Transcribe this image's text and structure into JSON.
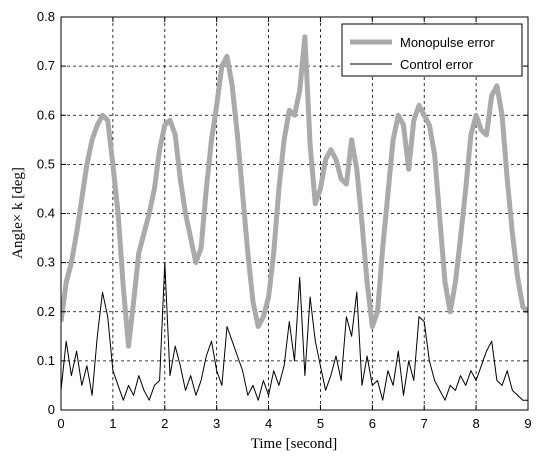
{
  "chart_data": {
    "type": "line",
    "xlabel": "Time [second]",
    "ylabel": "Angle× k [deg]",
    "xlim": [
      0,
      9
    ],
    "ylim": [
      0,
      0.8
    ],
    "x_ticks": [
      "0",
      "1",
      "2",
      "3",
      "4",
      "5",
      "6",
      "7",
      "8",
      "9"
    ],
    "y_ticks": [
      "0",
      "0.1",
      "0.2",
      "0.3",
      "0.4",
      "0.5",
      "0.6",
      "0.7",
      "0.8"
    ],
    "grid": true,
    "legend_position": "top-right",
    "series": [
      {
        "name": "Monopulse error",
        "color": "#aaaaaa",
        "x": [
          0,
          0.1,
          0.2,
          0.3,
          0.4,
          0.5,
          0.6,
          0.7,
          0.8,
          0.9,
          1.0,
          1.1,
          1.2,
          1.3,
          1.4,
          1.5,
          1.6,
          1.7,
          1.8,
          1.9,
          2.0,
          2.1,
          2.2,
          2.3,
          2.4,
          2.5,
          2.6,
          2.7,
          2.8,
          2.9,
          3.0,
          3.1,
          3.2,
          3.3,
          3.4,
          3.5,
          3.6,
          3.7,
          3.8,
          3.9,
          4.0,
          4.1,
          4.2,
          4.3,
          4.4,
          4.5,
          4.6,
          4.7,
          4.8,
          4.9,
          5.0,
          5.1,
          5.2,
          5.3,
          5.4,
          5.5,
          5.6,
          5.7,
          5.8,
          5.9,
          6.0,
          6.1,
          6.2,
          6.3,
          6.4,
          6.5,
          6.6,
          6.7,
          6.8,
          6.9,
          7.0,
          7.1,
          7.2,
          7.3,
          7.4,
          7.5,
          7.6,
          7.7,
          7.8,
          7.9,
          8.0,
          8.1,
          8.2,
          8.3,
          8.4,
          8.5,
          8.6,
          8.7,
          8.8,
          8.9,
          9.0
        ],
        "y": [
          0.18,
          0.26,
          0.3,
          0.36,
          0.43,
          0.5,
          0.55,
          0.58,
          0.6,
          0.59,
          0.5,
          0.4,
          0.25,
          0.13,
          0.22,
          0.32,
          0.36,
          0.4,
          0.45,
          0.53,
          0.58,
          0.59,
          0.56,
          0.47,
          0.4,
          0.35,
          0.3,
          0.33,
          0.45,
          0.55,
          0.62,
          0.7,
          0.72,
          0.66,
          0.56,
          0.44,
          0.32,
          0.22,
          0.17,
          0.19,
          0.23,
          0.32,
          0.45,
          0.55,
          0.61,
          0.6,
          0.65,
          0.76,
          0.54,
          0.42,
          0.45,
          0.51,
          0.53,
          0.51,
          0.47,
          0.46,
          0.55,
          0.49,
          0.38,
          0.26,
          0.17,
          0.2,
          0.33,
          0.44,
          0.55,
          0.6,
          0.58,
          0.49,
          0.59,
          0.62,
          0.6,
          0.58,
          0.52,
          0.39,
          0.26,
          0.2,
          0.26,
          0.35,
          0.45,
          0.56,
          0.6,
          0.57,
          0.56,
          0.64,
          0.66,
          0.6,
          0.47,
          0.36,
          0.27,
          0.21,
          0.2
        ]
      },
      {
        "name": "Control error",
        "color": "#000000",
        "x": [
          0,
          0.1,
          0.2,
          0.3,
          0.4,
          0.5,
          0.6,
          0.7,
          0.8,
          0.9,
          1.0,
          1.1,
          1.2,
          1.3,
          1.4,
          1.5,
          1.6,
          1.7,
          1.8,
          1.9,
          2.0,
          2.1,
          2.2,
          2.3,
          2.4,
          2.5,
          2.6,
          2.7,
          2.8,
          2.9,
          3.0,
          3.1,
          3.2,
          3.3,
          3.4,
          3.5,
          3.6,
          3.7,
          3.8,
          3.9,
          4.0,
          4.1,
          4.2,
          4.3,
          4.4,
          4.5,
          4.6,
          4.7,
          4.8,
          4.9,
          5.0,
          5.1,
          5.2,
          5.3,
          5.4,
          5.5,
          5.6,
          5.7,
          5.8,
          5.9,
          6.0,
          6.1,
          6.2,
          6.3,
          6.4,
          6.5,
          6.6,
          6.7,
          6.8,
          6.9,
          7.0,
          7.1,
          7.2,
          7.3,
          7.4,
          7.5,
          7.6,
          7.7,
          7.8,
          7.9,
          8.0,
          8.1,
          8.2,
          8.3,
          8.4,
          8.5,
          8.6,
          8.7,
          8.8,
          8.9,
          9.0
        ],
        "y": [
          0.04,
          0.14,
          0.07,
          0.12,
          0.05,
          0.09,
          0.03,
          0.15,
          0.24,
          0.19,
          0.08,
          0.05,
          0.02,
          0.05,
          0.03,
          0.07,
          0.04,
          0.02,
          0.05,
          0.06,
          0.3,
          0.07,
          0.13,
          0.09,
          0.04,
          0.07,
          0.03,
          0.06,
          0.11,
          0.14,
          0.08,
          0.05,
          0.17,
          0.14,
          0.11,
          0.08,
          0.03,
          0.05,
          0.02,
          0.06,
          0.03,
          0.08,
          0.05,
          0.09,
          0.18,
          0.1,
          0.27,
          0.07,
          0.23,
          0.14,
          0.09,
          0.04,
          0.07,
          0.11,
          0.06,
          0.19,
          0.15,
          0.24,
          0.05,
          0.11,
          0.05,
          0.06,
          0.02,
          0.08,
          0.05,
          0.12,
          0.03,
          0.1,
          0.06,
          0.19,
          0.18,
          0.1,
          0.06,
          0.04,
          0.02,
          0.05,
          0.04,
          0.07,
          0.05,
          0.08,
          0.06,
          0.09,
          0.12,
          0.14,
          0.06,
          0.05,
          0.08,
          0.04,
          0.03,
          0.02,
          0.02
        ]
      }
    ]
  }
}
